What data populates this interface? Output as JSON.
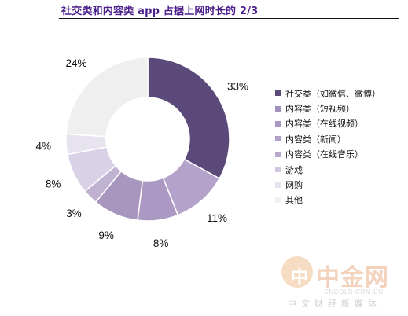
{
  "title": "社交类和内容类 app 占据上网时长的 2/3",
  "chart_data": {
    "type": "pie",
    "variant": "donut",
    "categories": [
      "社交类（如微信、微博）",
      "内容类（短视频）",
      "内容类（在线视频）",
      "内容类（新闻）",
      "内容类（在线音乐）",
      "游戏",
      "网购",
      "其他"
    ],
    "values": [
      33,
      11,
      8,
      9,
      3,
      8,
      4,
      24
    ],
    "value_labels": [
      "33%",
      "11%",
      "8%",
      "9%",
      "3%",
      "8%",
      "4%",
      "24%"
    ],
    "colors": [
      "#5b4a79",
      "#b3a2c9",
      "#ab99c3",
      "#a896bf",
      "#c0b3d2",
      "#d9d2e6",
      "#e7e3ef",
      "#efefef"
    ],
    "legend": [
      "社交类（如微信、微博）",
      "内容类（短视频）",
      "内容类（在线视频）",
      "内容类（新闻）",
      "内容类（在线音乐）",
      "游戏",
      "网购",
      "其他"
    ],
    "legend_colors": [
      "#5b4a79",
      "#a392bd",
      "#ab99c3",
      "#b1a1c9",
      "#b7a8ce",
      "#d0c7df",
      "#e7e3ef",
      "#f0f0f0"
    ],
    "legend_position": "right"
  },
  "watermark": {
    "logo_char": "中",
    "name": "中金网",
    "url": "CNGOLD.COM.CN",
    "subtitle": "中文财经新媒体"
  }
}
